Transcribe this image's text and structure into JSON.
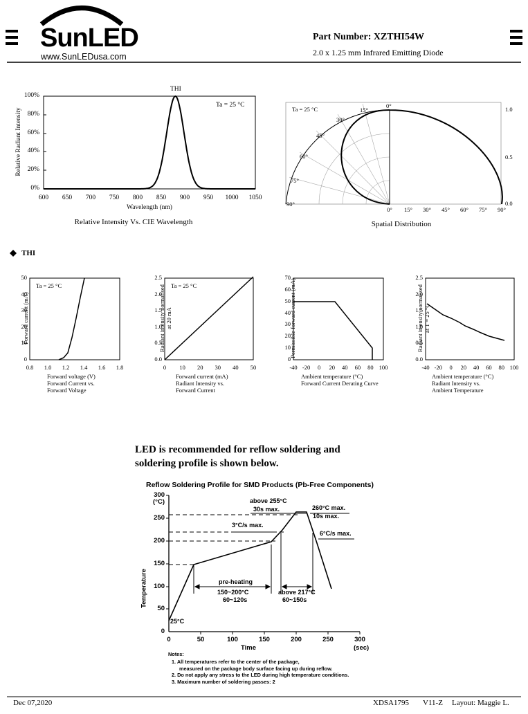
{
  "header": {
    "logo_text": "SunLED",
    "url": "www.SunLEDusa.com",
    "part_number": "Part Number: XZTHI54W",
    "description": "2.0 x 1.25 mm Infrared Emitting Diode"
  },
  "spectrum_chart": {
    "series_label": "THI",
    "ta_label": "Ta = 25 °C",
    "ylabel": "Relative Radiant Intensity",
    "xlabel": "Wavelength (nm)",
    "caption": "Relative Intensity Vs. CIE Wavelength",
    "x_ticks": [
      "600",
      "650",
      "700",
      "750",
      "800",
      "850",
      "900",
      "950",
      "1000",
      "1050"
    ],
    "y_ticks": [
      "100%",
      "80%",
      "60%",
      "40%",
      "20%",
      "0%"
    ]
  },
  "spatial_chart": {
    "ta_label": "Ta = 25 °C",
    "caption": "Spatial Distribution",
    "angle_labels": [
      "0°",
      "15°",
      "30°",
      "45°",
      "60°",
      "75°",
      "90°"
    ],
    "bottom_ticks": [
      "0°",
      "15°",
      "30°",
      "45°",
      "60°",
      "75°",
      "90°"
    ],
    "right_ticks": [
      "1.0",
      "0.5",
      "0.0"
    ]
  },
  "section_title": "THI",
  "small_charts": [
    {
      "ta": "Ta = 25 °C",
      "ylabel": "Forward current (mA)",
      "xlabel": "Forward voltage (V)",
      "caption1": "Forward Current vs.",
      "caption2": "Forward Voltage",
      "x_ticks": [
        "0.8",
        "1.0",
        "1.2",
        "1.4",
        "1.6",
        "1.8"
      ],
      "y_ticks": [
        "50",
        "40",
        "30",
        "20",
        "10",
        "0"
      ]
    },
    {
      "ta": "Ta = 25 °C",
      "ylabel1": "Radiant intensity normalised",
      "ylabel2": "at 20 mA",
      "xlabel": "Forward current (mA)",
      "caption1": "Radiant Intensity vs.",
      "caption2": "Forward Current",
      "x_ticks": [
        "0",
        "10",
        "20",
        "30",
        "40",
        "50"
      ],
      "y_ticks": [
        "2.5",
        "2.0",
        "1.5",
        "1.0",
        "0.5",
        "0.0"
      ]
    },
    {
      "ylabel": "Permissible forward current (mA)",
      "xlabel": "Ambient temperature (°C)",
      "caption1": "Forward Current Derating  Curve",
      "x_ticks": [
        "-40",
        "-20",
        "0",
        "20",
        "40",
        "60",
        "80",
        "100"
      ],
      "y_ticks": [
        "70",
        "60",
        "50",
        "40",
        "30",
        "20",
        "10",
        "0"
      ]
    },
    {
      "ylabel1": "Radiant intensity normalised",
      "ylabel2": "at T = 25 °C",
      "xlabel": "Ambient temperature (°C)",
      "caption1": "Radiant Intensity vs.",
      "caption2": "Ambient Temperature",
      "x_ticks": [
        "-40",
        "-20",
        "0",
        "20",
        "40",
        "60",
        "80",
        "100"
      ],
      "y_ticks": [
        "2.5",
        "2.0",
        "1.5",
        "1.0",
        "0.5",
        "0.0"
      ]
    }
  ],
  "reflow": {
    "heading_line1": "LED is recommended for reflow soldering and",
    "heading_line2": "soldering profile is shown below.",
    "title": "Reflow Soldering Profile for SMD Products (Pb-Free Components)",
    "y_unit": "(°C)",
    "ylabel": "Temperature",
    "xlabel": "Time",
    "x_unit": "(sec)",
    "x_ticks": [
      "0",
      "50",
      "100",
      "150",
      "200",
      "250",
      "300"
    ],
    "y_ticks": [
      "300",
      "250",
      "200",
      "150",
      "100",
      "50",
      "0"
    ],
    "ann_255": "above 255°C",
    "ann_30s": "30s  max.",
    "ann_260": "260°C  max.",
    "ann_10s": "10s  max.",
    "ann_3c": "3°C/s  max.",
    "ann_6c": "6°C/s  max.",
    "ann_preheat": "pre-heating",
    "ann_150_200": "150~200°C",
    "ann_60_120": "60~120s",
    "ann_217": "above  217°C",
    "ann_60_150": "60~150s",
    "ann_25": "25°C",
    "notes_title": "Notes:",
    "note1a": "1.  All temperatures refer to the center of the package,",
    "note1b": "measured on the package body surface facing up during reflow.",
    "note2": "2.  Do not apply any stress to the LED during high temperature conditions.",
    "note3": "3.  Maximum number of soldering passes: 2"
  },
  "footer": {
    "date": "Dec 07,2020",
    "doc": "XDSA1795",
    "rev": "V11-Z",
    "layout": "Layout: Maggie L."
  }
}
